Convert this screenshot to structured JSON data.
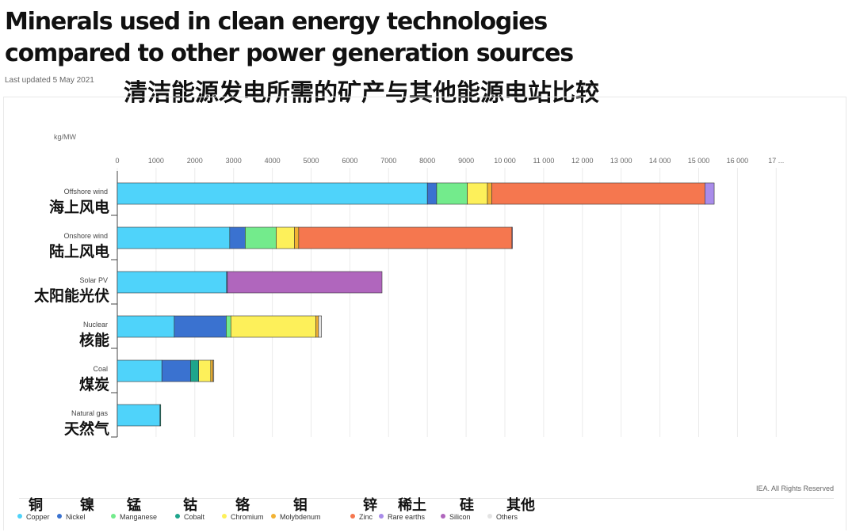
{
  "header": {
    "title_line1": "Minerals used in clean energy technologies",
    "title_line2": "compared to other power generation sources",
    "updated": "Last updated 5 May 2021",
    "cn_title": "清洁能源发电所需的矿产与其他能源电站比较"
  },
  "credit": "IEA. All Rights Reserved",
  "chart_data": {
    "type": "bar",
    "orientation": "horizontal",
    "stacked": true,
    "unit_label": "kg/MW",
    "xlim": [
      0,
      17000
    ],
    "x_ticks": [
      "0",
      "1000",
      "2000",
      "3000",
      "4000",
      "5000",
      "6000",
      "7000",
      "8000",
      "9000",
      "10 000",
      "11 000",
      "12 000",
      "13 000",
      "14 000",
      "15 000",
      "16 000",
      "17 ..."
    ],
    "categories": [
      "Offshore wind",
      "Onshore wind",
      "Solar PV",
      "Nuclear",
      "Coal",
      "Natural gas"
    ],
    "categories_cn": [
      "海上风电",
      "陆上风电",
      "太阳能光伏",
      "核能",
      "煤炭",
      "天然气"
    ],
    "grid": "vertical",
    "legend_position": "bottom",
    "series": [
      {
        "name": "Copper",
        "name_cn": "铜",
        "color": "#4fd3fa",
        "values": [
          8000,
          2900,
          2820,
          1470,
          1150,
          1100
        ]
      },
      {
        "name": "Nickel",
        "name_cn": "镍",
        "color": "#3a72d0",
        "values": [
          240,
          400,
          20,
          1340,
          740,
          0
        ]
      },
      {
        "name": "Manganese",
        "name_cn": "锰",
        "color": "#73eb8c",
        "values": [
          790,
          800,
          0,
          120,
          0,
          0
        ]
      },
      {
        "name": "Cobalt",
        "name_cn": "钴",
        "color": "#1ea58c",
        "values": [
          0,
          0,
          0,
          0,
          210,
          20
        ]
      },
      {
        "name": "Chromium",
        "name_cn": "铬",
        "color": "#fdf05a",
        "values": [
          520,
          470,
          0,
          2190,
          310,
          0
        ]
      },
      {
        "name": "Molybdenum",
        "name_cn": "钼",
        "color": "#f2b233",
        "values": [
          110,
          110,
          0,
          70,
          60,
          0
        ]
      },
      {
        "name": "Zinc",
        "name_cn": "锌",
        "color": "#f5774f",
        "values": [
          5500,
          5500,
          0,
          0,
          0,
          0
        ]
      },
      {
        "name": "Rare earths",
        "name_cn": "稀土",
        "color": "#a98cea",
        "values": [
          240,
          15,
          0,
          0,
          0,
          0
        ]
      },
      {
        "name": "Silicon",
        "name_cn": "硅",
        "color": "#b066bd",
        "values": [
          0,
          0,
          3990,
          0,
          0,
          0
        ]
      },
      {
        "name": "Others",
        "name_cn": "其他",
        "color": "#e3e3e3",
        "values": [
          0,
          0,
          0,
          80,
          20,
          0
        ]
      }
    ]
  }
}
